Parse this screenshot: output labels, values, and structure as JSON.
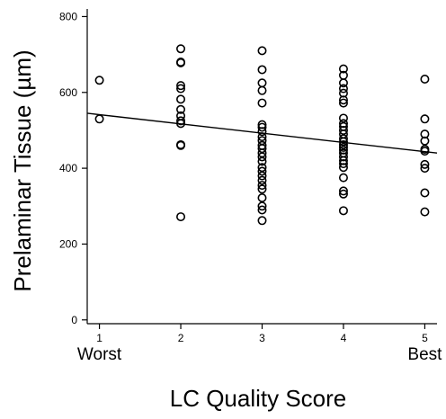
{
  "chart_data": {
    "type": "scatter",
    "title": "",
    "xlabel": "LC Quality Score",
    "ylabel": "Prelaminar Tissue (µm)",
    "xlim": [
      0.85,
      5.15
    ],
    "ylim": [
      -10,
      820
    ],
    "x_ticks": [
      1,
      2,
      3,
      4,
      5
    ],
    "x_tick_labels": [
      "1",
      "2",
      "3",
      "4",
      "5"
    ],
    "x_sub_labels": [
      {
        "x": 1,
        "text": "Worst"
      },
      {
        "x": 5,
        "text": "Best"
      }
    ],
    "y_ticks": [
      0,
      200,
      400,
      600,
      800
    ],
    "y_tick_labels": [
      "0",
      "200",
      "400",
      "600",
      "800"
    ],
    "grid": false,
    "legend": "none",
    "marker": "open-circle",
    "color": "#000000",
    "trend_line": {
      "x": [
        0.85,
        5.15
      ],
      "y": [
        545,
        440
      ]
    },
    "series": [
      {
        "points": [
          [
            1,
            632
          ],
          [
            1,
            530
          ],
          [
            2,
            715
          ],
          [
            2,
            680
          ],
          [
            2,
            678
          ],
          [
            2,
            618
          ],
          [
            2,
            610
          ],
          [
            2,
            582
          ],
          [
            2,
            555
          ],
          [
            2,
            538
          ],
          [
            2,
            525
          ],
          [
            2,
            518
          ],
          [
            2,
            462
          ],
          [
            2,
            460
          ],
          [
            2,
            272
          ],
          [
            3,
            710
          ],
          [
            3,
            660
          ],
          [
            3,
            625
          ],
          [
            3,
            605
          ],
          [
            3,
            572
          ],
          [
            3,
            515
          ],
          [
            3,
            508
          ],
          [
            3,
            497
          ],
          [
            3,
            483
          ],
          [
            3,
            473
          ],
          [
            3,
            460
          ],
          [
            3,
            452
          ],
          [
            3,
            440
          ],
          [
            3,
            430
          ],
          [
            3,
            418
          ],
          [
            3,
            402
          ],
          [
            3,
            392
          ],
          [
            3,
            380
          ],
          [
            3,
            368
          ],
          [
            3,
            355
          ],
          [
            3,
            345
          ],
          [
            3,
            322
          ],
          [
            3,
            300
          ],
          [
            3,
            290
          ],
          [
            3,
            262
          ],
          [
            4,
            662
          ],
          [
            4,
            645
          ],
          [
            4,
            625
          ],
          [
            4,
            610
          ],
          [
            4,
            598
          ],
          [
            4,
            580
          ],
          [
            4,
            572
          ],
          [
            4,
            532
          ],
          [
            4,
            518
          ],
          [
            4,
            510
          ],
          [
            4,
            500
          ],
          [
            4,
            490
          ],
          [
            4,
            478
          ],
          [
            4,
            470
          ],
          [
            4,
            462
          ],
          [
            4,
            455
          ],
          [
            4,
            448
          ],
          [
            4,
            440
          ],
          [
            4,
            430
          ],
          [
            4,
            420
          ],
          [
            4,
            412
          ],
          [
            4,
            402
          ],
          [
            4,
            375
          ],
          [
            4,
            340
          ],
          [
            4,
            332
          ],
          [
            4,
            288
          ],
          [
            5,
            635
          ],
          [
            5,
            530
          ],
          [
            5,
            490
          ],
          [
            5,
            472
          ],
          [
            5,
            450
          ],
          [
            5,
            445
          ],
          [
            5,
            410
          ],
          [
            5,
            400
          ],
          [
            5,
            335
          ],
          [
            5,
            285
          ]
        ]
      }
    ]
  }
}
